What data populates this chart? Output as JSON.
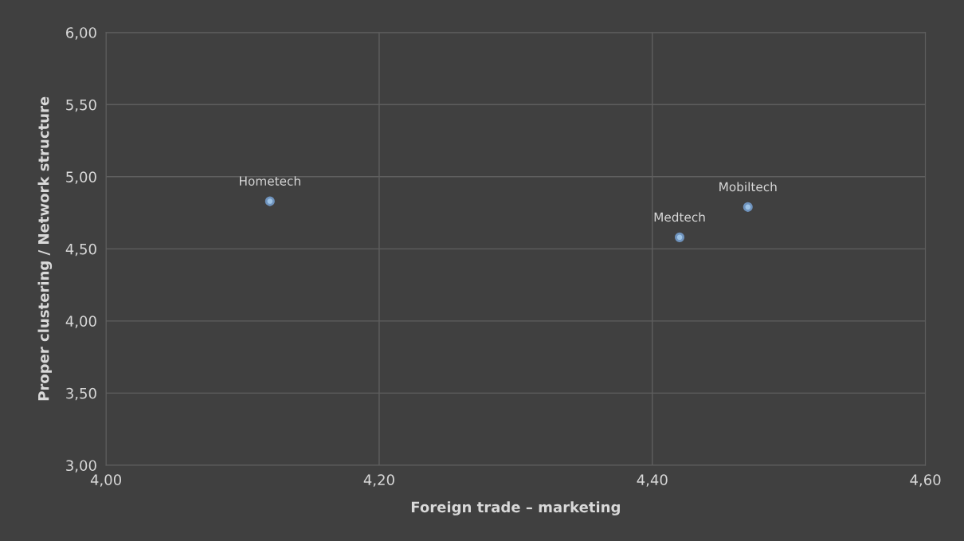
{
  "chart_data": {
    "type": "scatter",
    "xlabel": "Foreign trade – marketing",
    "ylabel": "Proper clustering / Network structure",
    "x": [
      4.12,
      4.42,
      4.47
    ],
    "series": [
      {
        "color": "#9dc3e6",
        "values": [
          4.83,
          4.58,
          4.79
        ]
      }
    ],
    "annotations": [
      {
        "text": "Hometech",
        "x": 4.12,
        "y": 4.83
      },
      {
        "text": "Medtech",
        "x": 4.42,
        "y": 4.58
      },
      {
        "text": "Mobiltech",
        "x": 4.47,
        "y": 4.79
      }
    ],
    "xlim": [
      4.0,
      4.6
    ],
    "ylim": [
      3.0,
      6.0
    ],
    "xticks": [
      {
        "value": 4.0,
        "label": "4,00"
      },
      {
        "value": 4.2,
        "label": "4,20"
      },
      {
        "value": 4.4,
        "label": "4,40"
      },
      {
        "value": 4.6,
        "label": "4,60"
      }
    ],
    "yticks": [
      {
        "value": 3.0,
        "label": "3,00"
      },
      {
        "value": 3.5,
        "label": "3,50"
      },
      {
        "value": 4.0,
        "label": "4,00"
      },
      {
        "value": 4.5,
        "label": "4,50"
      },
      {
        "value": 5.0,
        "label": "5,00"
      },
      {
        "value": 5.5,
        "label": "5,50"
      },
      {
        "value": 6.0,
        "label": "6,00"
      }
    ],
    "grid": true,
    "marker": "circle"
  }
}
